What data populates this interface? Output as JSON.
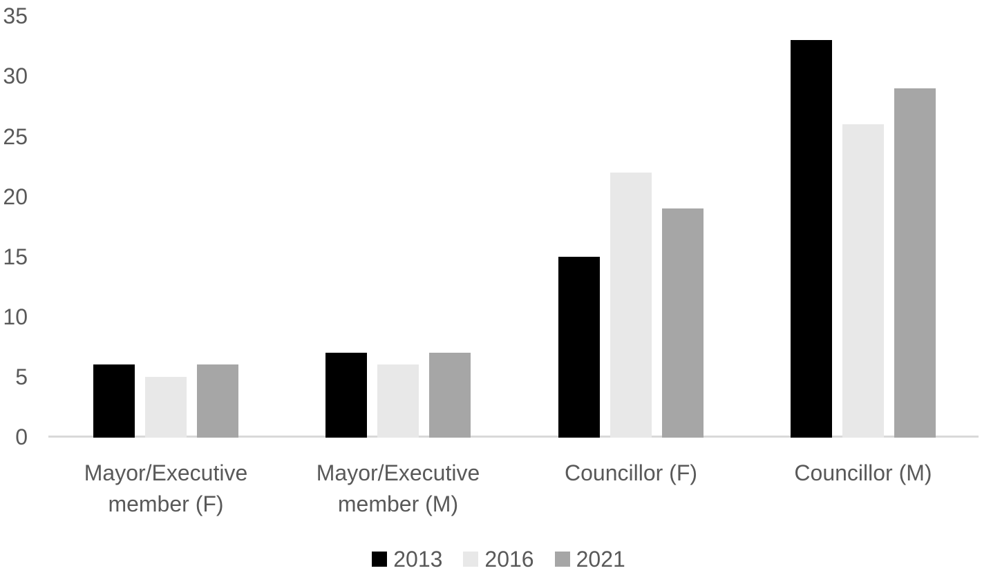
{
  "colors": {
    "background": "#ffffff",
    "axis_line": "#d9d9d9",
    "label_text": "#595959"
  },
  "chart_data": {
    "type": "bar",
    "title": "",
    "xlabel": "",
    "ylabel": "",
    "grid": false,
    "legend_position": "bottom",
    "ylim": [
      0,
      35
    ],
    "yticks": [
      0,
      5,
      10,
      15,
      20,
      25,
      30,
      35
    ],
    "categories": [
      "Mayor/Executive member (F)",
      "Mayor/Executive member (M)",
      "Councillor (F)",
      "Councillor (M)"
    ],
    "category_lines": [
      [
        "Mayor/Executive",
        "member (F)"
      ],
      [
        "Mayor/Executive",
        "member (M)"
      ],
      [
        "Councillor (F)"
      ],
      [
        "Councillor (M)"
      ]
    ],
    "series": [
      {
        "name": "2013",
        "color": "#000000",
        "values": [
          6,
          7,
          15,
          33
        ]
      },
      {
        "name": "2016",
        "color": "#e8e8e8",
        "values": [
          5,
          6,
          22,
          26
        ]
      },
      {
        "name": "2021",
        "color": "#a6a6a6",
        "values": [
          6,
          7,
          19,
          29
        ]
      }
    ]
  }
}
